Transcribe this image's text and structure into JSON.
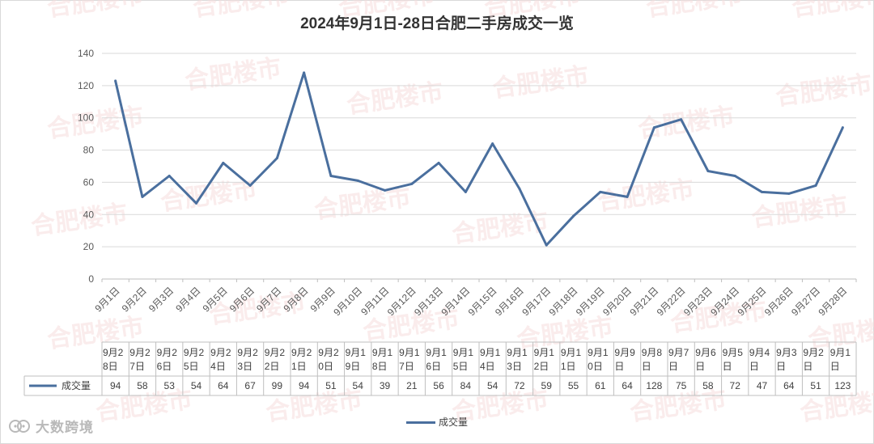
{
  "chart_data": {
    "type": "line",
    "title": "2024年9月1日-28日合肥二手房成交一览",
    "categories": [
      "9月1日",
      "9月2日",
      "9月3日",
      "9月4日",
      "9月5日",
      "9月6日",
      "9月7日",
      "9月8日",
      "9月9日",
      "9月10日",
      "9月11日",
      "9月12日",
      "9月13日",
      "9月14日",
      "9月15日",
      "9月16日",
      "9月17日",
      "9月18日",
      "9月19日",
      "9月20日",
      "9月21日",
      "9月22日",
      "9月23日",
      "9月24日",
      "9月25日",
      "9月26日",
      "9月27日",
      "9月28日"
    ],
    "series": [
      {
        "name": "成交量",
        "values": [
          123,
          51,
          64,
          47,
          72,
          58,
          75,
          128,
          64,
          61,
          55,
          59,
          72,
          54,
          84,
          56,
          21,
          39,
          54,
          51,
          94,
          99,
          67,
          64,
          54,
          53,
          58,
          94
        ]
      }
    ],
    "ylim": [
      0,
      140
    ],
    "yticks": [
      0,
      20,
      40,
      60,
      80,
      100,
      120,
      140
    ],
    "grid": true,
    "legend_position": "bottom",
    "table": {
      "header_cells": [
        "9月28日",
        "9月27日",
        "9月26日",
        "9月25日",
        "9月24日",
        "9月23日",
        "9月22日",
        "9月21日",
        "9月20日",
        "9月19日",
        "9月18日",
        "9月17日",
        "9月16日",
        "9月15日",
        "9月14日",
        "9月13日",
        "9月12日",
        "9月11日",
        "9月10日",
        "9月9日",
        "9月8日",
        "9月7日",
        "9月6日",
        "9月5日",
        "9月4日",
        "9月3日",
        "9月2日",
        "9月1日"
      ],
      "row_label": "成交量",
      "values": [
        "94",
        "58",
        "53",
        "54",
        "64",
        "67",
        "99",
        "94",
        "51",
        "54",
        "39",
        "21",
        "56",
        "84",
        "54",
        "72",
        "59",
        "55",
        "61",
        "64",
        "128",
        "75",
        "58",
        "72",
        "47",
        "64",
        "51",
        "123"
      ]
    },
    "colors": {
      "line": "#4a6f9e",
      "grid": "#d9d9d9",
      "axis": "#bfbfbf"
    }
  },
  "footer": {
    "brand": "大数跨境",
    "legend_label": "成交量"
  },
  "watermark_text": "合肥楼市"
}
